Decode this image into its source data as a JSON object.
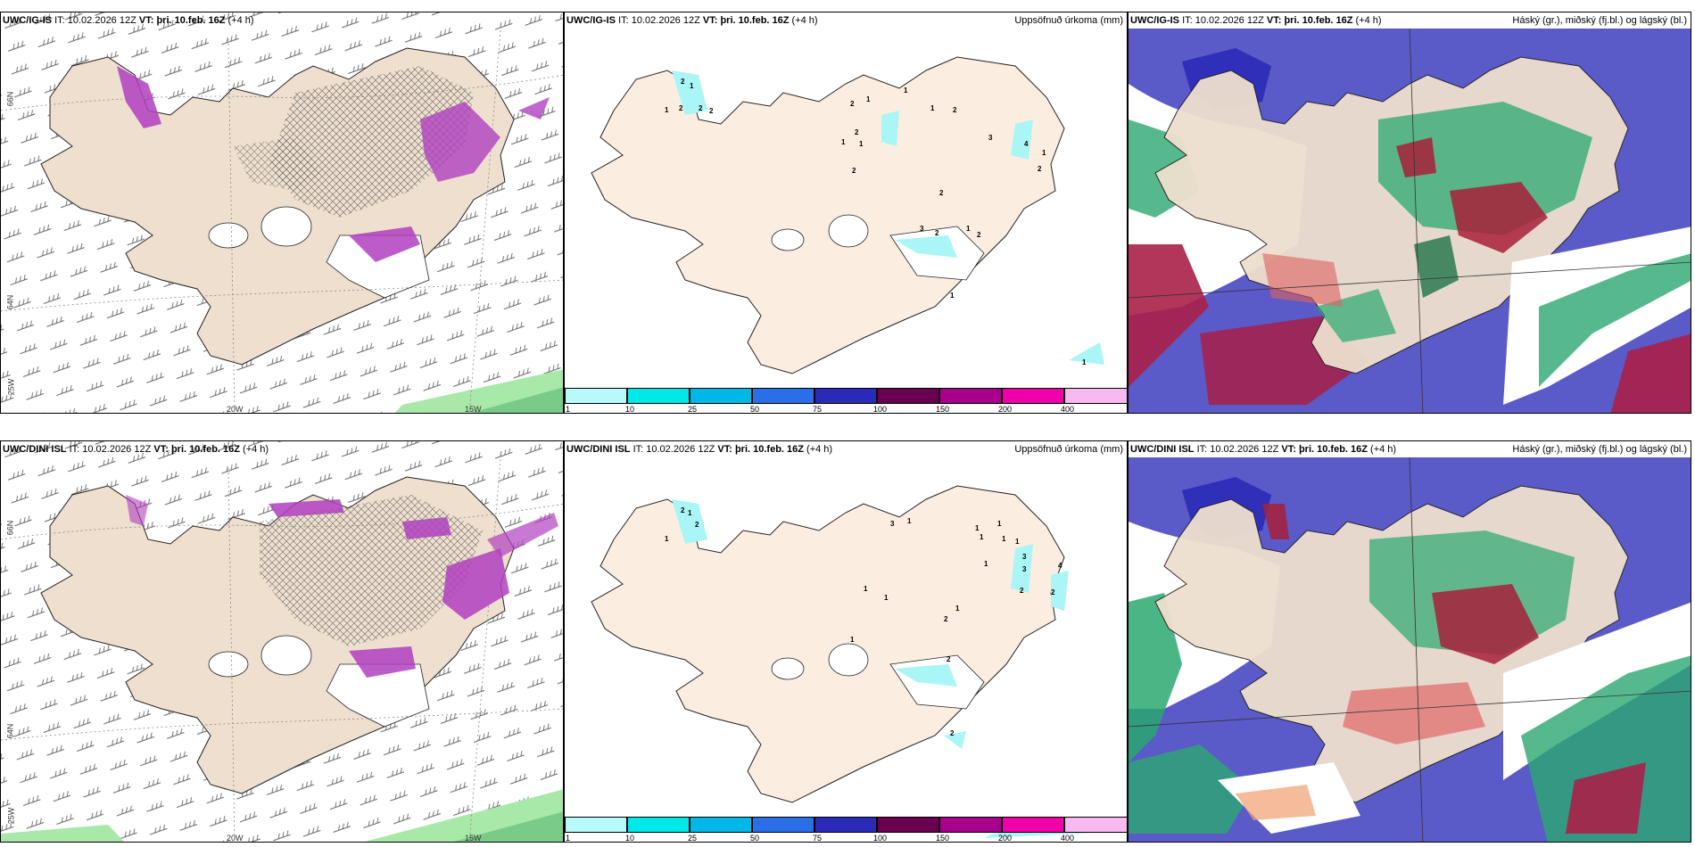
{
  "rows": [
    {
      "model": "UWC/IG-IS",
      "init_label": "IT:",
      "init_time": "10.02.2026 12Z",
      "valid_label": "VT:",
      "valid_time": "þri. 10.feb. 16Z",
      "lead": "(+4 h)"
    },
    {
      "model": "UWC/DINI ISL",
      "init_label": "IT:",
      "init_time": "10.02.2026 12Z",
      "valid_label": "VT:",
      "valid_time": "þri. 10.feb. 16Z",
      "lead": "(+4 h)"
    }
  ],
  "panels": {
    "precip_title": "Uppsöfnuð úrkoma (mm)",
    "cloud_title": "Háský (gr.), miðský (fj.bl.) og lágský (bl.)"
  },
  "axis_labels": {
    "lat66": "66N",
    "lat64": "64N",
    "lon25": "25W",
    "lon20": "20W",
    "lon15": "15W"
  },
  "colorbar": {
    "ticks": [
      "1",
      "10",
      "25",
      "50",
      "75",
      "100",
      "150",
      "200",
      "400"
    ],
    "colors": [
      "#b8fafa",
      "#00e8e8",
      "#00b8e8",
      "#2a6ee8",
      "#2a2ab8",
      "#6a0050",
      "#a8008a",
      "#f000a8",
      "#f8b8f0"
    ]
  },
  "precip_labels_top": [
    "2",
    "1",
    "1",
    "2",
    "2",
    "2",
    "2",
    "1",
    "2",
    "2",
    "1",
    "1",
    "1",
    "1",
    "2",
    "3",
    "4",
    "1",
    "2",
    "2",
    "3",
    "2",
    "1",
    "2",
    "1",
    "1"
  ],
  "precip_labels_bottom": [
    "2",
    "1",
    "1",
    "2",
    "3",
    "1",
    "1",
    "1",
    "1",
    "1",
    "1",
    "3",
    "3",
    "4",
    "2",
    "2",
    "1",
    "1",
    "1",
    "2",
    "1",
    "2",
    "2",
    "1"
  ],
  "colors": {
    "land": "#fbeee0",
    "land_wind": "#eedfce",
    "snow_white": "#ffffff",
    "precip_light": "#aaf5f5",
    "purple": "#b040c0",
    "cloud_blue": "#5858c8",
    "cloud_green": "#2aa870",
    "cloud_red": "#a8203a"
  }
}
